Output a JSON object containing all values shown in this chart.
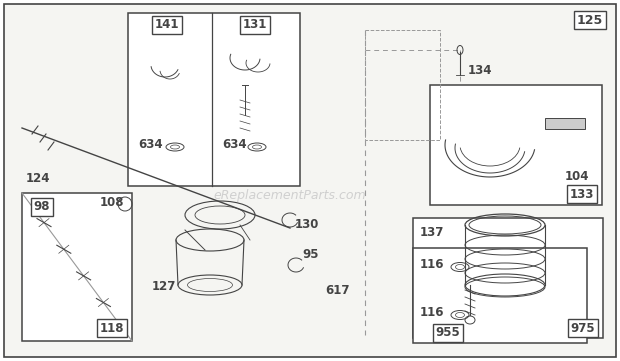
{
  "bg_color": "#ffffff",
  "outer_bg": "#f0f0ee",
  "line_color": "#444444",
  "light_gray": "#999999",
  "watermark_color": "#cccccc",
  "watermark": "eReplacementParts.com"
}
